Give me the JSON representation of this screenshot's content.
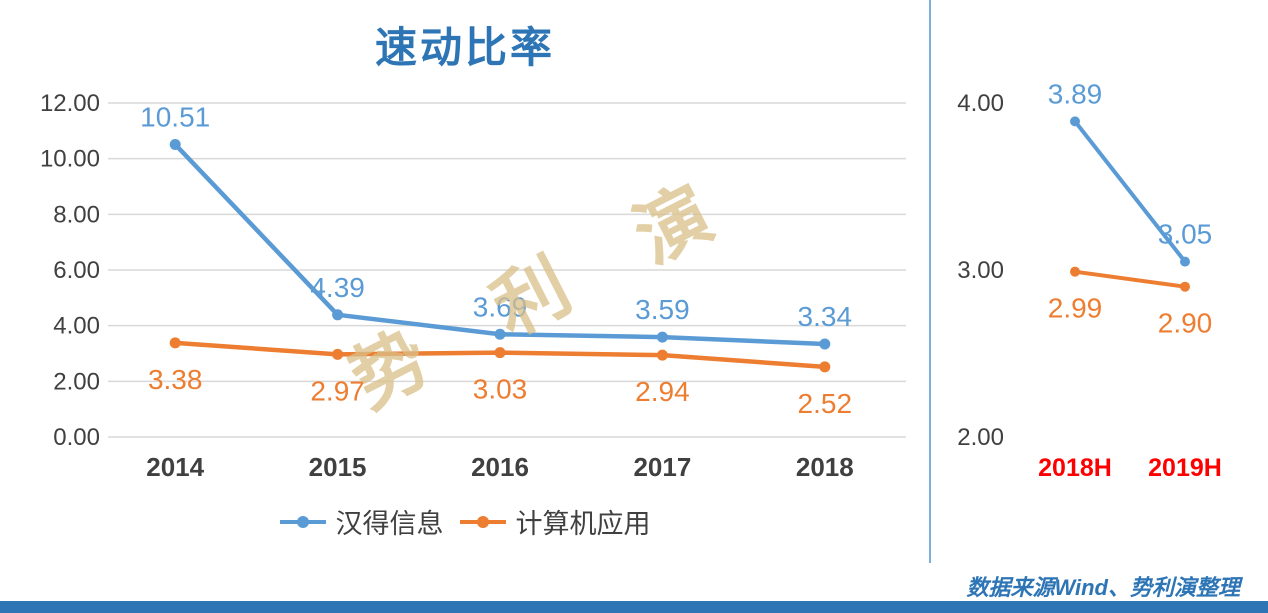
{
  "title": "速动比率",
  "watermark": "势利演",
  "footer": "数据来源Wind、势利演整理",
  "colors": {
    "blue": "#5B9BD5",
    "orange": "#ED7D31",
    "title_blue": "#2E75B6",
    "red": "#FF0000",
    "watermark": "#D9C089",
    "grid": "#D9D9D9",
    "axis_text": "#404040",
    "divider": "#7EB0DE",
    "bottom_bar": "#2E75B6"
  },
  "legend": [
    {
      "label": "汉得信息",
      "color": "#5B9BD5"
    },
    {
      "label": "计算机应用",
      "color": "#ED7D31"
    }
  ],
  "chart_data": [
    {
      "type": "line",
      "title": "速动比率",
      "categories": [
        "2014",
        "2015",
        "2016",
        "2017",
        "2018"
      ],
      "series": [
        {
          "name": "汉得信息",
          "color": "#5B9BD5",
          "values": [
            10.51,
            4.39,
            3.69,
            3.59,
            3.34
          ],
          "label_position": "above"
        },
        {
          "name": "计算机应用",
          "color": "#ED7D31",
          "values": [
            3.38,
            2.97,
            3.03,
            2.94,
            2.52
          ],
          "label_position": "below"
        }
      ],
      "xlabel": "",
      "ylabel": "",
      "ylim": [
        0,
        12
      ],
      "yticks": [
        0,
        2,
        4,
        6,
        8,
        10,
        12
      ],
      "grid": true,
      "legend_position": "bottom"
    },
    {
      "type": "line",
      "title": "",
      "categories": [
        "2018H",
        "2019H"
      ],
      "category_color": "#FF0000",
      "series": [
        {
          "name": "汉得信息",
          "color": "#5B9BD5",
          "values": [
            3.89,
            3.05
          ],
          "label_position": "above"
        },
        {
          "name": "计算机应用",
          "color": "#ED7D31",
          "values": [
            2.99,
            2.9
          ],
          "label_position": "below"
        }
      ],
      "xlabel": "",
      "ylabel": "",
      "ylim": [
        2,
        4
      ],
      "yticks": [
        2,
        3,
        4
      ],
      "grid": false,
      "legend_position": "none"
    }
  ]
}
